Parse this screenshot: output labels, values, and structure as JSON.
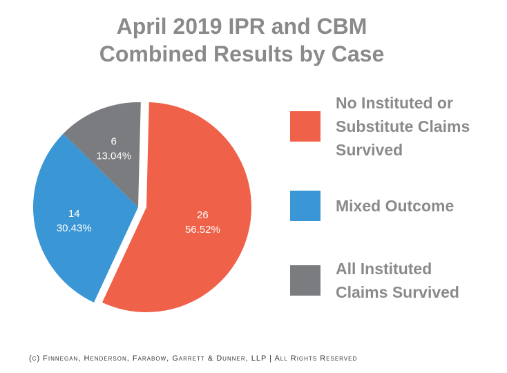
{
  "chart_data": {
    "type": "pie",
    "title_line1": "April 2019 IPR and CBM",
    "title_line2": "Combined Results by Case",
    "slices": [
      {
        "label": "No Instituted or Substitute Claims Survived",
        "legend_lines": [
          "No Instituted or",
          "Substitute Claims",
          "Survived"
        ],
        "value": 26,
        "percent": "56.52%",
        "color": "#f0614a"
      },
      {
        "label": "Mixed Outcome",
        "legend_lines": [
          "Mixed Outcome"
        ],
        "value": 14,
        "percent": "30.43%",
        "color": "#3a96d4"
      },
      {
        "label": "All Instituted Claims Survived",
        "legend_lines": [
          "All Instituted",
          "Claims Survived"
        ],
        "value": 6,
        "percent": "13.04%",
        "color": "#7b7c80"
      }
    ],
    "legend_position": "right"
  },
  "footer": "(c) Finnegan, Henderson, Farabow, Garrett & Dunner, LLP | All Rights Reserved"
}
